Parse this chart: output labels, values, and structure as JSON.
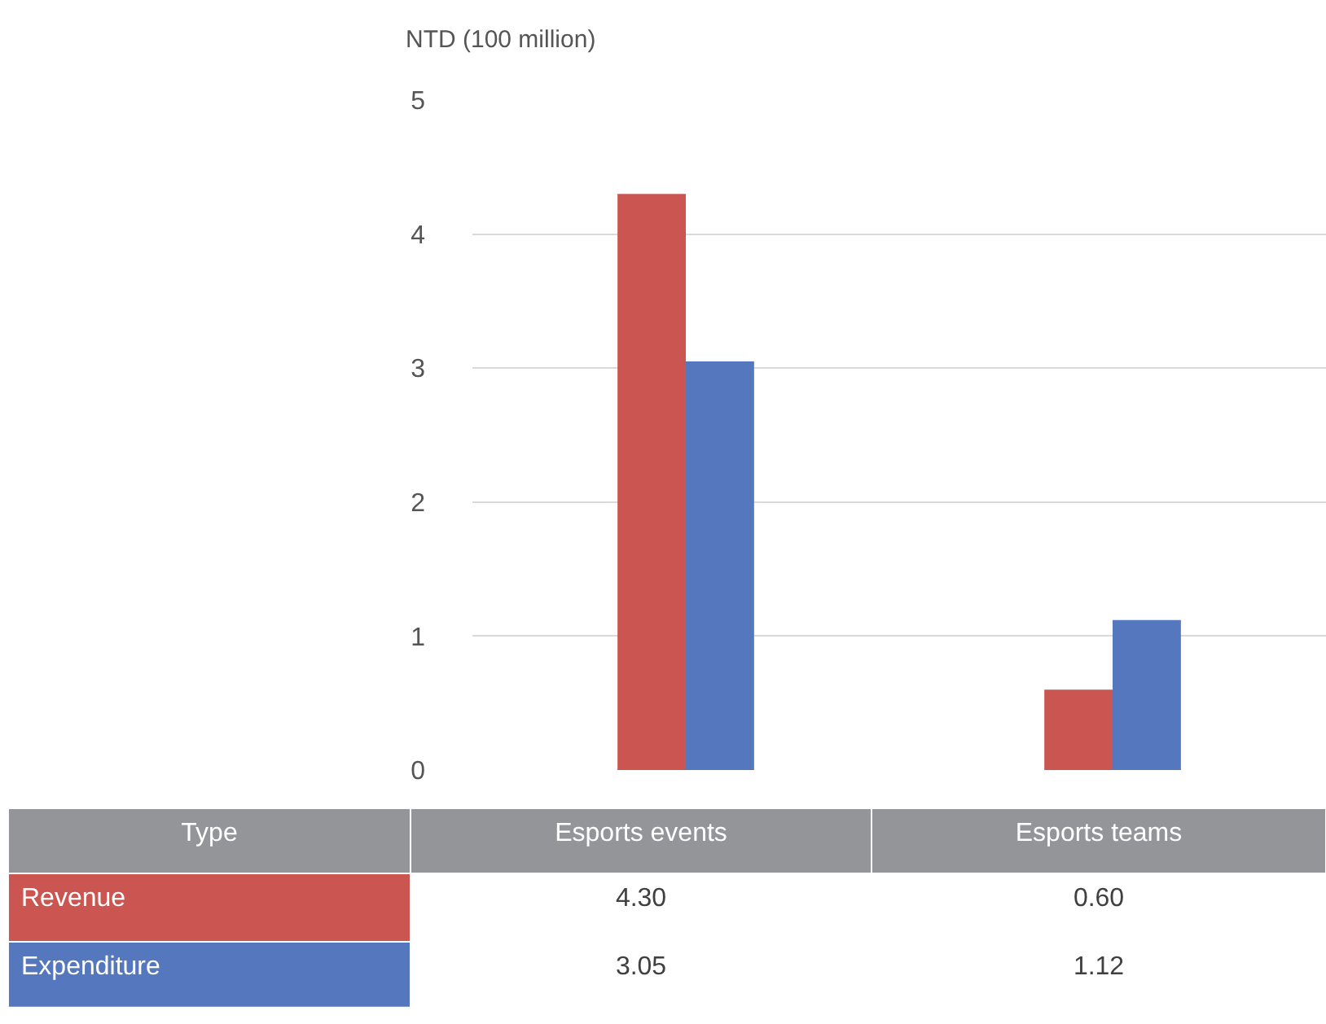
{
  "chart_data": {
    "type": "bar",
    "ylabel": "NTD (100 million)",
    "legend_title": "Type",
    "categories": [
      "Esports events",
      "Esports teams"
    ],
    "series": [
      {
        "name": "Revenue",
        "color": "#cb5651",
        "values": [
          4.3,
          0.6
        ],
        "value_labels": [
          "4.30",
          "0.60"
        ]
      },
      {
        "name": "Expenditure",
        "color": "#5577be",
        "values": [
          3.05,
          1.12
        ],
        "value_labels": [
          "3.05",
          "1.12"
        ]
      }
    ],
    "ylim": [
      0,
      5
    ],
    "yticks": [
      0,
      1,
      2,
      3,
      4,
      5
    ],
    "grid": "y",
    "legend": false
  }
}
